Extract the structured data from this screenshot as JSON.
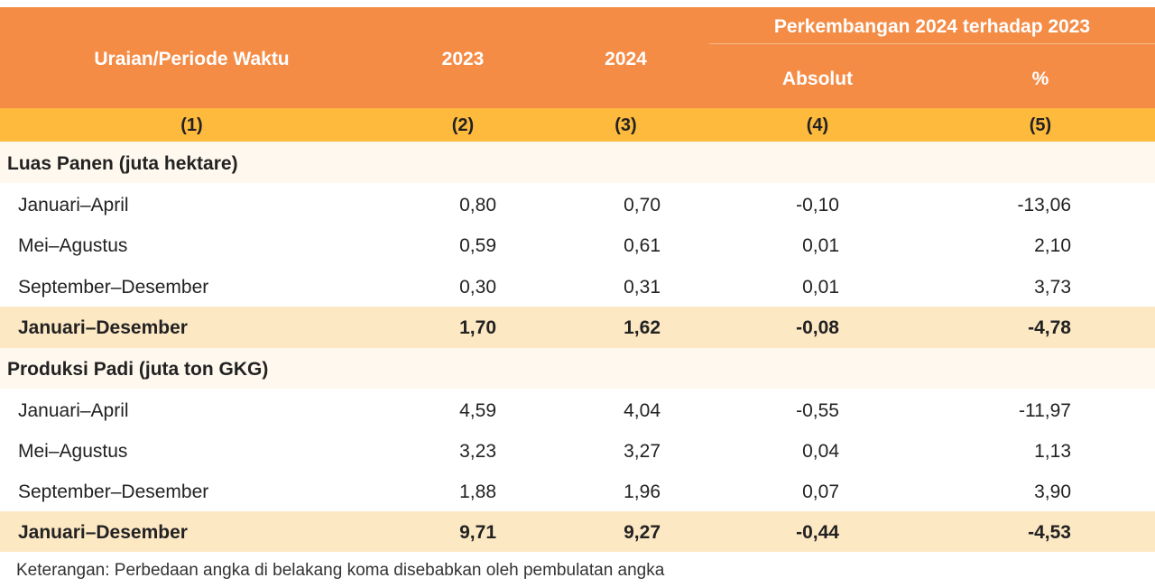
{
  "header": {
    "col1": "Uraian/Periode Waktu",
    "col2": "2023",
    "col3": "2024",
    "group": "Perkembangan 2024 terhadap 2023",
    "col4": "Absolut",
    "col5": "%"
  },
  "numbers": [
    "(1)",
    "(2)",
    "(3)",
    "(4)",
    "(5)"
  ],
  "sections": [
    {
      "title": "Luas Panen (juta hektare)",
      "rows": [
        {
          "label": "Januari–April",
          "v2023": "0,80",
          "v2024": "0,70",
          "abs": "-0,10",
          "pct": "-13,06"
        },
        {
          "label": "Mei–Agustus",
          "v2023": "0,59",
          "v2024": "0,61",
          "abs": "0,01",
          "pct": "2,10"
        },
        {
          "label": "September–Desember",
          "v2023": "0,30",
          "v2024": "0,31",
          "abs": "0,01",
          "pct": "3,73"
        }
      ],
      "total": {
        "label": "Januari–Desember",
        "v2023": "1,70",
        "v2024": "1,62",
        "abs": "-0,08",
        "pct": "-4,78"
      }
    },
    {
      "title": "Produksi Padi (juta ton GKG)",
      "rows": [
        {
          "label": "Januari–April",
          "v2023": "4,59",
          "v2024": "4,04",
          "abs": "-0,55",
          "pct": "-11,97"
        },
        {
          "label": "Mei–Agustus",
          "v2023": "3,23",
          "v2024": "3,27",
          "abs": "0,04",
          "pct": "1,13"
        },
        {
          "label": "September–Desember",
          "v2023": "1,88",
          "v2024": "1,96",
          "abs": "0,07",
          "pct": "3,90"
        }
      ],
      "total": {
        "label": "Januari–Desember",
        "v2023": "9,71",
        "v2024": "9,27",
        "abs": "-0,44",
        "pct": "-4,53"
      }
    }
  ],
  "note": "Keterangan: Perbedaan angka di belakang koma disebabkan oleh pembulatan angka"
}
